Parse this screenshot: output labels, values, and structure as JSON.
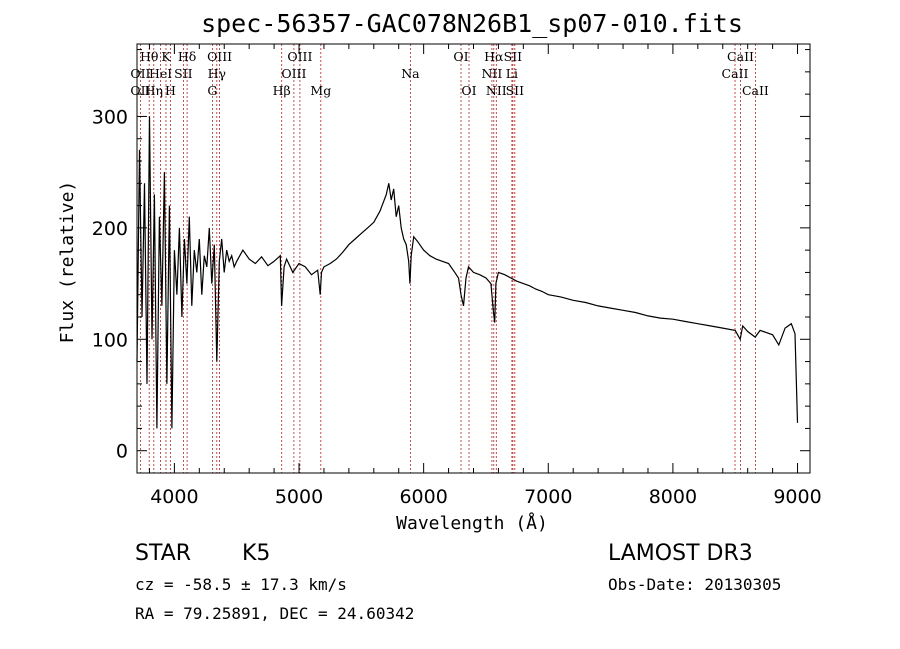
{
  "chart_data": {
    "type": "line",
    "title": "spec-56357-GAC078N26B1_sp07-010.fits",
    "xlabel": "Wavelength (Å)",
    "ylabel": "Flux (relative)",
    "xlim": [
      3700,
      9100
    ],
    "ylim": [
      -20,
      365
    ],
    "xticks": [
      4000,
      5000,
      6000,
      7000,
      8000,
      9000
    ],
    "yticks": [
      0,
      100,
      200,
      300
    ],
    "series": [
      {
        "name": "flux",
        "x": [
          3700,
          3720,
          3740,
          3760,
          3780,
          3800,
          3820,
          3840,
          3860,
          3880,
          3900,
          3920,
          3940,
          3960,
          3980,
          4000,
          4020,
          4040,
          4060,
          4080,
          4100,
          4120,
          4140,
          4160,
          4180,
          4200,
          4220,
          4240,
          4260,
          4280,
          4300,
          4320,
          4340,
          4360,
          4380,
          4400,
          4420,
          4440,
          4460,
          4480,
          4500,
          4550,
          4600,
          4650,
          4700,
          4750,
          4800,
          4850,
          4860,
          4880,
          4900,
          4950,
          5000,
          5050,
          5100,
          5150,
          5170,
          5180,
          5200,
          5250,
          5300,
          5350,
          5400,
          5450,
          5500,
          5550,
          5600,
          5650,
          5700,
          5720,
          5740,
          5760,
          5780,
          5800,
          5820,
          5840,
          5860,
          5880,
          5890,
          5900,
          5920,
          5950,
          6000,
          6050,
          6100,
          6150,
          6200,
          6250,
          6280,
          6300,
          6320,
          6340,
          6360,
          6400,
          6450,
          6500,
          6540,
          6560,
          6570,
          6580,
          6600,
          6650,
          6700,
          6750,
          6800,
          6850,
          6900,
          6950,
          7000,
          7100,
          7200,
          7300,
          7400,
          7500,
          7600,
          7700,
          7800,
          7900,
          8000,
          8100,
          8200,
          8300,
          8400,
          8500,
          8540,
          8560,
          8600,
          8660,
          8700,
          8750,
          8800,
          8850,
          8900,
          8950,
          8980,
          9000
        ],
        "y": [
          80,
          270,
          120,
          240,
          60,
          300,
          100,
          230,
          20,
          210,
          130,
          250,
          60,
          220,
          20,
          180,
          140,
          200,
          120,
          190,
          150,
          210,
          130,
          180,
          160,
          190,
          140,
          175,
          165,
          200,
          150,
          185,
          80,
          170,
          190,
          160,
          180,
          170,
          175,
          165,
          170,
          180,
          172,
          168,
          174,
          166,
          170,
          175,
          130,
          165,
          172,
          160,
          168,
          165,
          158,
          162,
          140,
          160,
          165,
          168,
          172,
          178,
          185,
          190,
          195,
          200,
          205,
          215,
          230,
          240,
          225,
          235,
          210,
          220,
          200,
          190,
          185,
          170,
          150,
          175,
          192,
          188,
          180,
          175,
          172,
          170,
          168,
          160,
          155,
          140,
          130,
          155,
          165,
          160,
          158,
          155,
          150,
          125,
          115,
          150,
          160,
          158,
          155,
          152,
          150,
          148,
          145,
          143,
          140,
          138,
          135,
          133,
          130,
          128,
          126,
          124,
          121,
          119,
          118,
          116,
          114,
          112,
          110,
          108,
          100,
          112,
          107,
          102,
          108,
          106,
          104,
          95,
          110,
          114,
          105,
          25
        ]
      }
    ],
    "spectral_lines": [
      {
        "label": "Hθ",
        "wave": 3798,
        "row": 0
      },
      {
        "label": "OII",
        "wave": 3727,
        "row": 1
      },
      {
        "label": "OII",
        "wave": 3727,
        "row": 2
      },
      {
        "label": "Hη",
        "wave": 3835,
        "row": 2
      },
      {
        "label": "HeI",
        "wave": 3889,
        "row": 1
      },
      {
        "label": "K",
        "wave": 3933,
        "row": 0
      },
      {
        "label": "H",
        "wave": 3968,
        "row": 2
      },
      {
        "label": "SII",
        "wave": 4072,
        "row": 1
      },
      {
        "label": "Hδ",
        "wave": 4102,
        "row": 0
      },
      {
        "label": "G",
        "wave": 4305,
        "row": 2
      },
      {
        "label": "Hγ",
        "wave": 4340,
        "row": 1
      },
      {
        "label": "OIII",
        "wave": 4363,
        "row": 0
      },
      {
        "label": "Hβ",
        "wave": 4861,
        "row": 2
      },
      {
        "label": "OIII",
        "wave": 4959,
        "row": 1
      },
      {
        "label": "OIII",
        "wave": 5007,
        "row": 0
      },
      {
        "label": "Mg",
        "wave": 5175,
        "row": 2
      },
      {
        "label": "Na",
        "wave": 5894,
        "row": 1
      },
      {
        "label": "OI",
        "wave": 6300,
        "row": 0
      },
      {
        "label": "OI",
        "wave": 6364,
        "row": 2
      },
      {
        "label": "NII",
        "wave": 6548,
        "row": 1
      },
      {
        "label": "Hα",
        "wave": 6563,
        "row": 0
      },
      {
        "label": "NII",
        "wave": 6583,
        "row": 2
      },
      {
        "label": "Li",
        "wave": 6708,
        "row": 1
      },
      {
        "label": "SII",
        "wave": 6716,
        "row": 0
      },
      {
        "label": "SII",
        "wave": 6731,
        "row": 2
      },
      {
        "label": "CaII",
        "wave": 8498,
        "row": 1
      },
      {
        "label": "CaII",
        "wave": 8542,
        "row": 0
      },
      {
        "label": "CaII",
        "wave": 8662,
        "row": 2
      }
    ]
  },
  "info": {
    "class": "STAR",
    "subclass": "K5",
    "survey": "LAMOST DR3",
    "cz": "cz = -58.5 ± 17.3 km/s",
    "obs_date": "Obs-Date: 20130305",
    "coords": "RA =  79.25891, DEC =  24.60342"
  },
  "colors": {
    "line_marker": "#b22222",
    "spectrum": "#000000"
  }
}
